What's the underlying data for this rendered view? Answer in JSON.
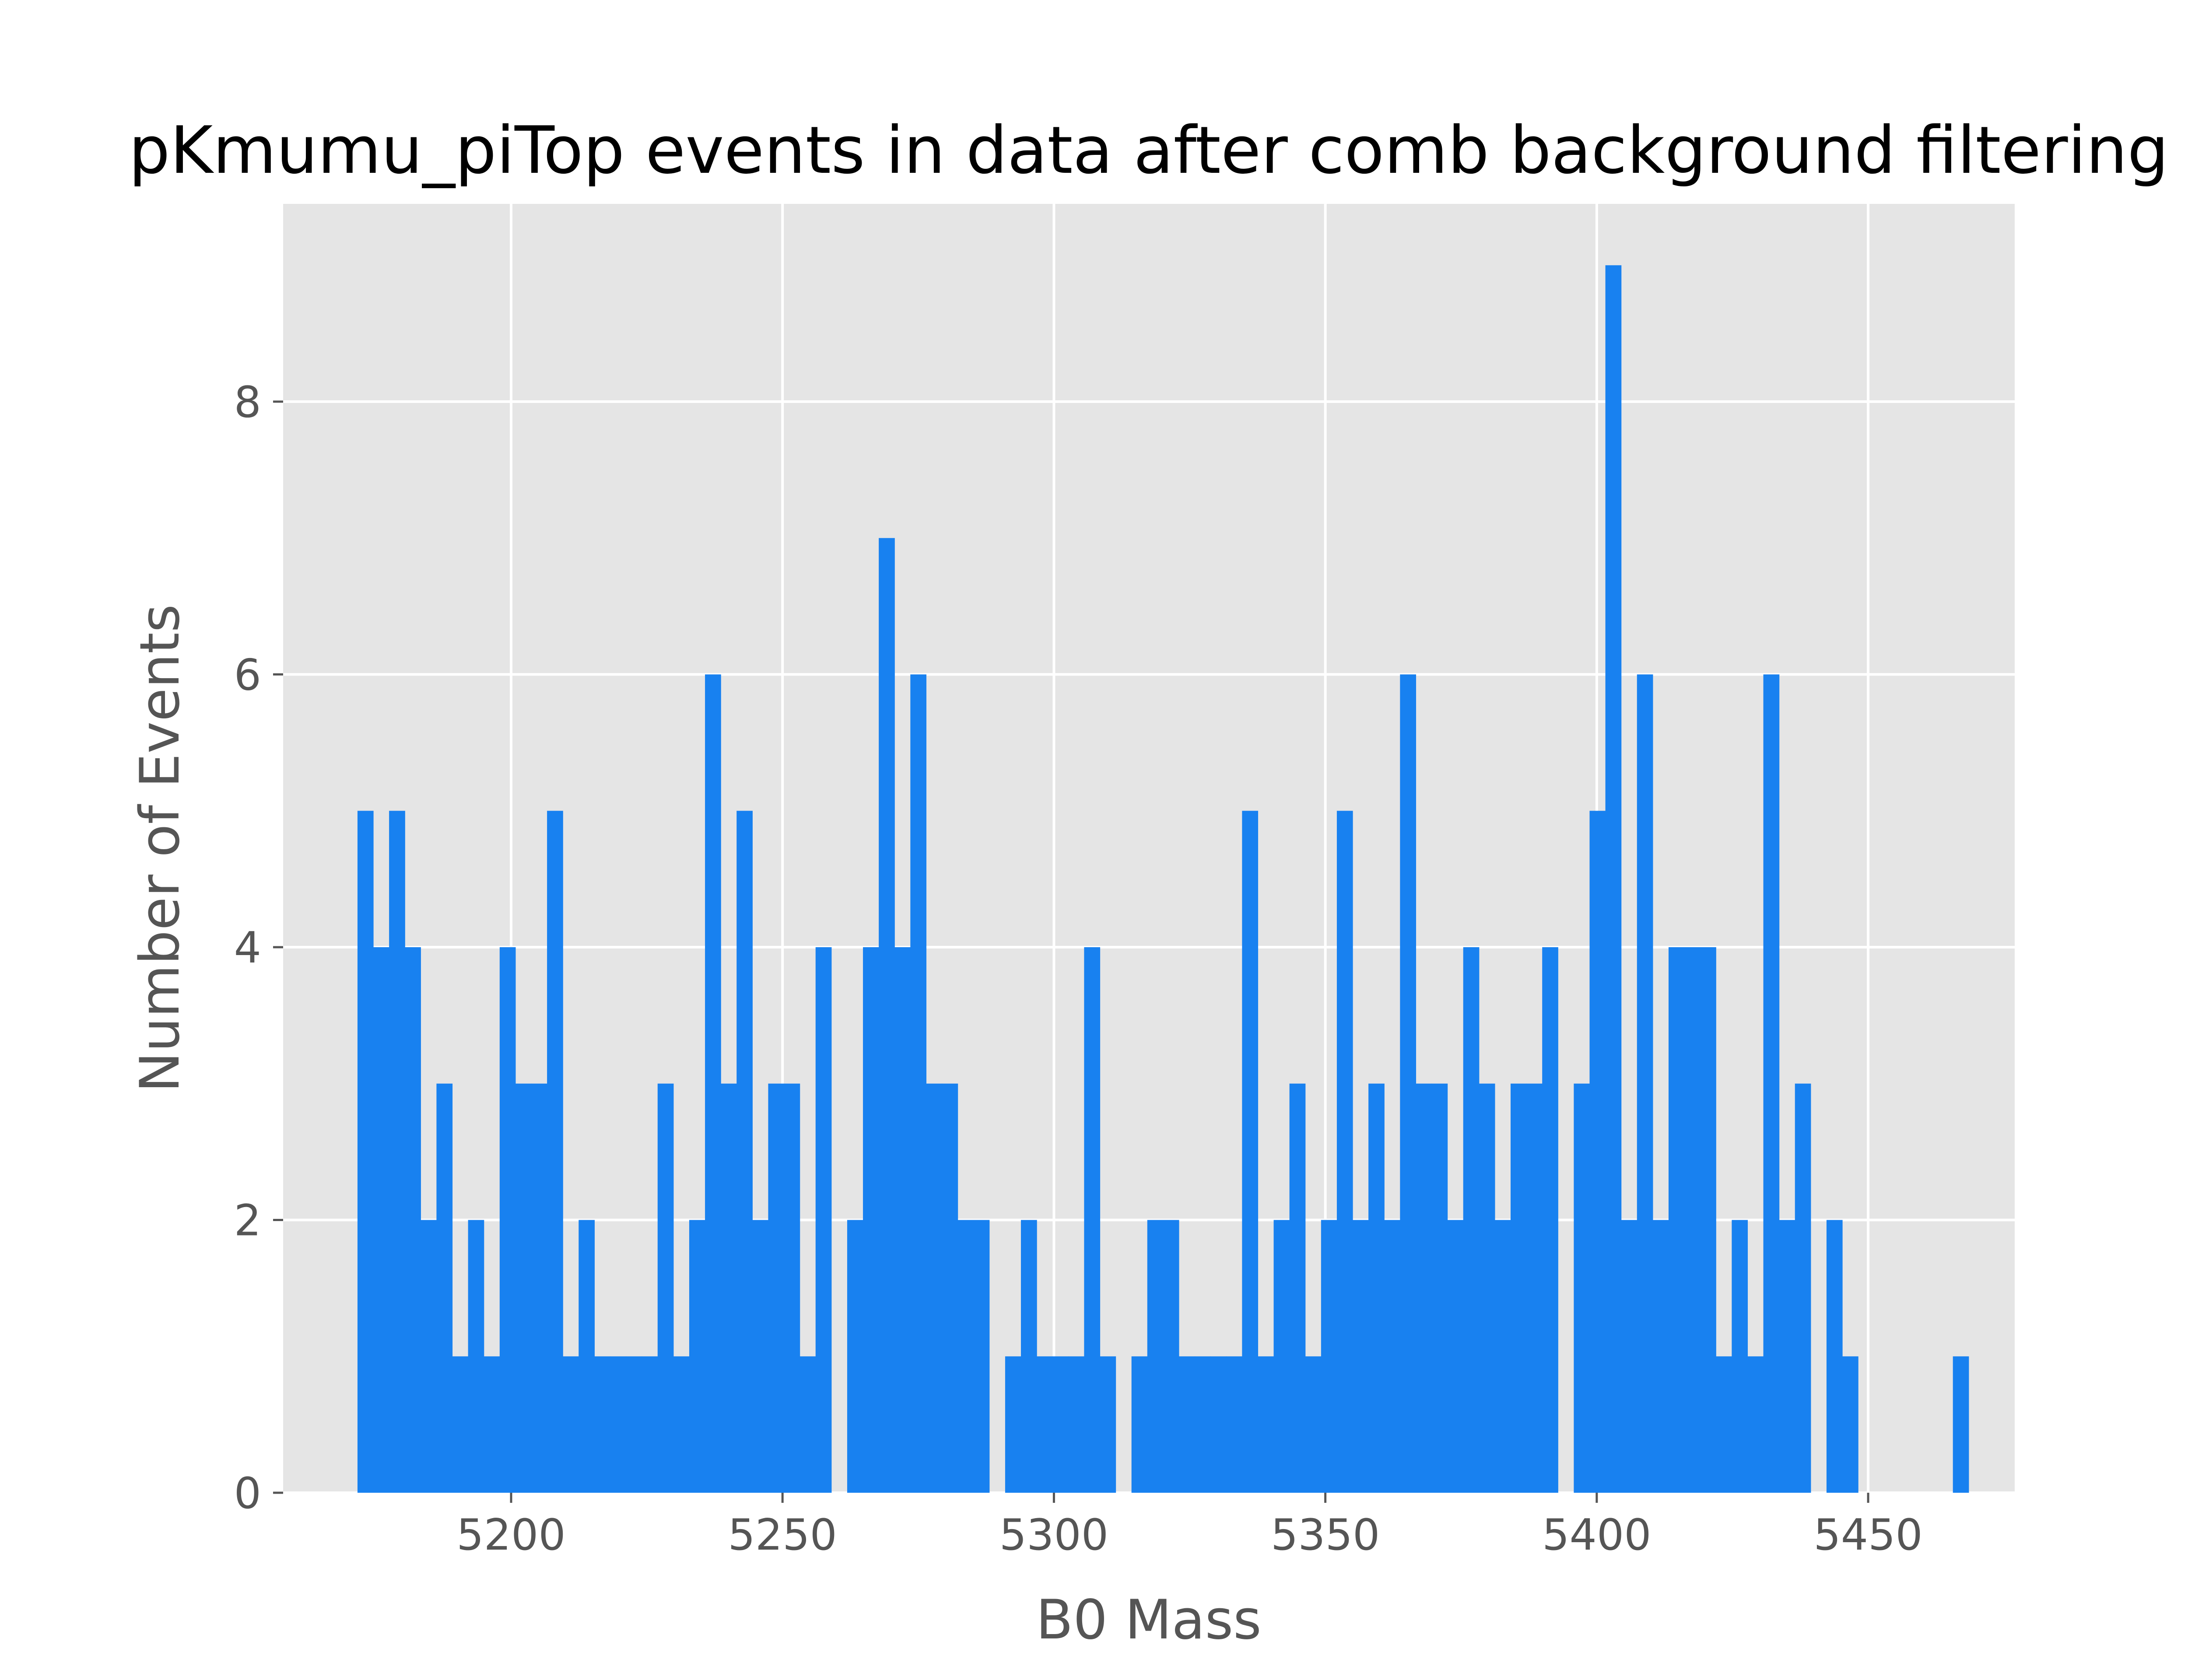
{
  "chart_data": {
    "type": "bar",
    "title": "pKmumu_piTop events in data after comb background filtering",
    "xlabel": "B0 Mass",
    "ylabel": "Number of Events",
    "xlim": [
      5158,
      5477
    ],
    "ylim": [
      0,
      9.45
    ],
    "grid": true,
    "legend": "none",
    "colors": {
      "bar": "#1881f0",
      "plot_background": "#e5e5e5",
      "grid": "#ffffff",
      "tick": "#555555",
      "text": "#555555"
    },
    "xticks": [
      5200,
      5250,
      5300,
      5350,
      5400,
      5450
    ],
    "xtick_labels": [
      "5200",
      "5250",
      "5300",
      "5350",
      "5400",
      "5450"
    ],
    "yticks": [
      0,
      2,
      4,
      6,
      8
    ],
    "ytick_labels": [
      "0",
      "2",
      "4",
      "6",
      "8"
    ],
    "bin_start": 5171.7,
    "bin_width": 2.91,
    "counts": [
      5,
      4,
      5,
      4,
      2,
      3,
      1,
      2,
      1,
      4,
      3,
      3,
      5,
      1,
      2,
      1,
      1,
      1,
      1,
      3,
      1,
      2,
      6,
      3,
      5,
      2,
      3,
      3,
      1,
      4,
      0,
      2,
      4,
      7,
      4,
      6,
      3,
      3,
      2,
      2,
      0,
      1,
      2,
      1,
      1,
      1,
      4,
      1,
      0,
      1,
      2,
      2,
      1,
      1,
      1,
      1,
      5,
      1,
      2,
      3,
      1,
      2,
      5,
      2,
      3,
      2,
      6,
      3,
      3,
      2,
      4,
      3,
      2,
      3,
      3,
      4,
      0,
      3,
      5,
      9,
      2,
      6,
      2,
      4,
      4,
      4,
      1,
      2,
      1,
      6,
      2,
      3,
      0,
      2,
      1,
      0,
      0,
      0,
      0,
      0,
      0,
      1
    ]
  }
}
